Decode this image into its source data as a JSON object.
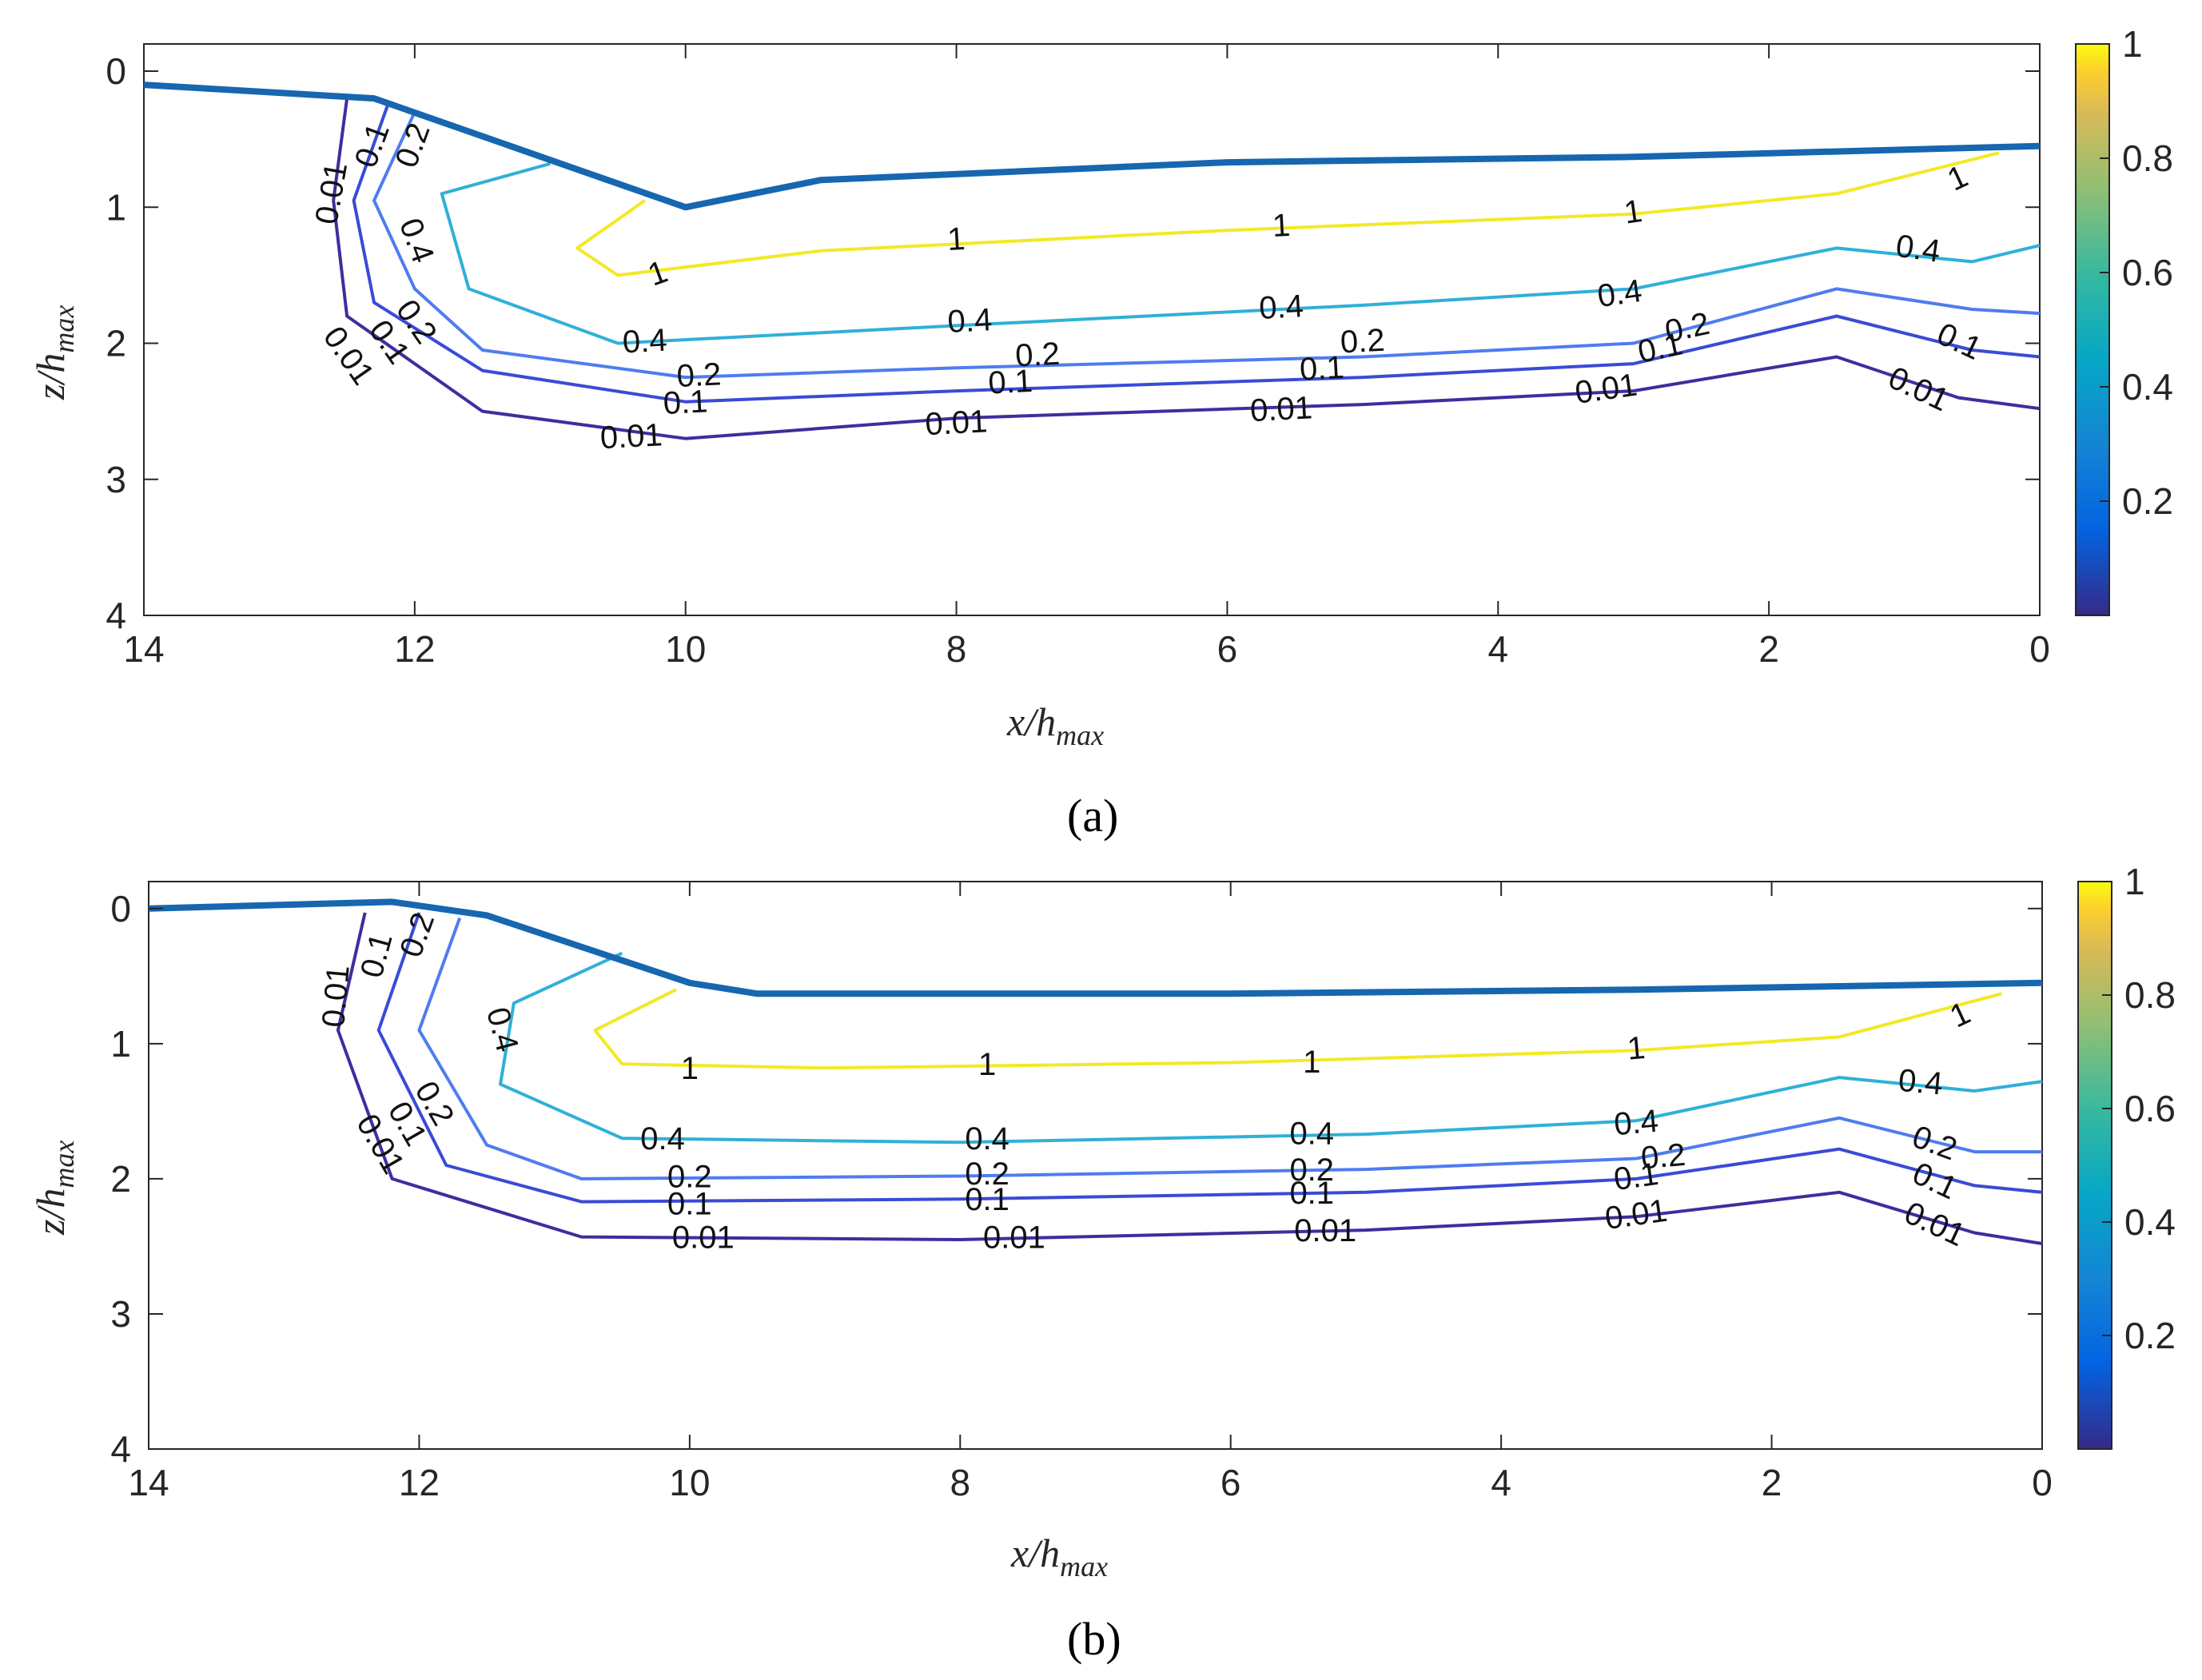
{
  "chart_data": [
    {
      "panel": "a",
      "panel_label": "(a)",
      "type": "contour",
      "xlabel": "x/h",
      "xlabel_sub": "max",
      "ylabel": "z/h",
      "ylabel_sub": "max",
      "xlim": [
        14,
        0
      ],
      "ylim": [
        4,
        -0.2
      ],
      "xticks": [
        "14",
        "12",
        "10",
        "8",
        "6",
        "4",
        "2",
        "0"
      ],
      "yticks": [
        "0",
        "1",
        "2",
        "3",
        "4"
      ],
      "colorbar": {
        "min": 0.0,
        "max": 1.0,
        "ticks": [
          "0.2",
          "0.4",
          "0.6",
          "0.8",
          "1"
        ]
      },
      "surface": [
        [
          14,
          0.1
        ],
        [
          12.3,
          0.2
        ],
        [
          10.0,
          1.0
        ],
        [
          9.0,
          0.8
        ],
        [
          6.0,
          0.67
        ],
        [
          3.0,
          0.63
        ],
        [
          0,
          0.55
        ]
      ],
      "contours": [
        {
          "level": 1,
          "color": "#f2e925",
          "points": [
            [
              10.3,
              0.95
            ],
            [
              10.8,
              1.3
            ],
            [
              10.5,
              1.5
            ],
            [
              9.0,
              1.32
            ],
            [
              6.0,
              1.17
            ],
            [
              3.0,
              1.05
            ],
            [
              1.5,
              0.9
            ],
            [
              0.3,
              0.6
            ]
          ]
        },
        {
          "level": 0.4,
          "color": "#30b0d8",
          "points": [
            [
              11.0,
              0.68
            ],
            [
              11.8,
              0.9
            ],
            [
              11.6,
              1.6
            ],
            [
              10.5,
              2.0
            ],
            [
              8.0,
              1.87
            ],
            [
              5.0,
              1.72
            ],
            [
              3.0,
              1.6
            ],
            [
              1.5,
              1.3
            ],
            [
              0.5,
              1.4
            ],
            [
              0,
              1.28
            ]
          ]
        },
        {
          "level": 0.2,
          "color": "#4f7cf0",
          "points": [
            [
              12.0,
              0.3
            ],
            [
              12.3,
              0.95
            ],
            [
              12.0,
              1.6
            ],
            [
              11.5,
              2.05
            ],
            [
              10.0,
              2.25
            ],
            [
              8.0,
              2.18
            ],
            [
              5.0,
              2.1
            ],
            [
              3.0,
              2.0
            ],
            [
              1.5,
              1.6
            ],
            [
              0.5,
              1.75
            ],
            [
              0,
              1.78
            ]
          ]
        },
        {
          "level": 0.1,
          "color": "#3a4bd6",
          "points": [
            [
              12.2,
              0.25
            ],
            [
              12.45,
              0.95
            ],
            [
              12.3,
              1.7
            ],
            [
              11.5,
              2.2
            ],
            [
              10.0,
              2.43
            ],
            [
              8.0,
              2.35
            ],
            [
              5.0,
              2.25
            ],
            [
              3.0,
              2.15
            ],
            [
              1.5,
              1.8
            ],
            [
              0.5,
              2.05
            ],
            [
              0,
              2.1
            ]
          ]
        },
        {
          "level": 0.01,
          "color": "#3b2f9f",
          "points": [
            [
              12.5,
              0.2
            ],
            [
              12.6,
              0.95
            ],
            [
              12.5,
              1.8
            ],
            [
              11.5,
              2.5
            ],
            [
              10.0,
              2.7
            ],
            [
              8.0,
              2.55
            ],
            [
              5.0,
              2.45
            ],
            [
              3.0,
              2.35
            ],
            [
              1.5,
              2.1
            ],
            [
              0.6,
              2.4
            ],
            [
              0,
              2.48
            ]
          ]
        }
      ],
      "contour_labels": [
        {
          "text": "1",
          "x": 10.2,
          "z": 1.5,
          "angle": -20
        },
        {
          "text": "1",
          "x": 8.0,
          "z": 1.25,
          "angle": -3
        },
        {
          "text": "1",
          "x": 5.6,
          "z": 1.15,
          "angle": -3
        },
        {
          "text": "1",
          "x": 3.0,
          "z": 1.05,
          "angle": -8
        },
        {
          "text": "1",
          "x": 0.6,
          "z": 0.8,
          "angle": -25
        },
        {
          "text": "0.4",
          "x": 12.0,
          "z": 1.25,
          "angle": 70
        },
        {
          "text": "0.4",
          "x": 10.3,
          "z": 2.0,
          "angle": -3
        },
        {
          "text": "0.4",
          "x": 7.9,
          "z": 1.85,
          "angle": -3
        },
        {
          "text": "0.4",
          "x": 5.6,
          "z": 1.75,
          "angle": -3
        },
        {
          "text": "0.4",
          "x": 3.1,
          "z": 1.65,
          "angle": -8
        },
        {
          "text": "0.4",
          "x": 0.9,
          "z": 1.32,
          "angle": 8
        },
        {
          "text": "0.2",
          "x": 12.0,
          "z": 0.55,
          "angle": -70
        },
        {
          "text": "0.2",
          "x": 12.0,
          "z": 1.85,
          "angle": 55
        },
        {
          "text": "0.2",
          "x": 9.9,
          "z": 2.25,
          "angle": -3
        },
        {
          "text": "0.2",
          "x": 7.4,
          "z": 2.1,
          "angle": -3
        },
        {
          "text": "0.2",
          "x": 5.0,
          "z": 2.0,
          "angle": -3
        },
        {
          "text": "0.2",
          "x": 2.6,
          "z": 1.9,
          "angle": -12
        },
        {
          "text": "0.1",
          "x": 12.3,
          "z": 0.55,
          "angle": -70
        },
        {
          "text": "0.1",
          "x": 12.2,
          "z": 2.0,
          "angle": 55
        },
        {
          "text": "0.1",
          "x": 10.0,
          "z": 2.45,
          "angle": -3
        },
        {
          "text": "0.1",
          "x": 7.6,
          "z": 2.3,
          "angle": -3
        },
        {
          "text": "0.1",
          "x": 5.3,
          "z": 2.2,
          "angle": -3
        },
        {
          "text": "0.1",
          "x": 2.8,
          "z": 2.05,
          "angle": -12
        },
        {
          "text": "0.1",
          "x": 0.6,
          "z": 2.0,
          "angle": 25
        },
        {
          "text": "0.01",
          "x": 12.6,
          "z": 0.9,
          "angle": -80
        },
        {
          "text": "0.01",
          "x": 12.5,
          "z": 2.1,
          "angle": 55
        },
        {
          "text": "0.01",
          "x": 10.4,
          "z": 2.7,
          "angle": -3
        },
        {
          "text": "0.01",
          "x": 8.0,
          "z": 2.6,
          "angle": -3
        },
        {
          "text": "0.01",
          "x": 5.6,
          "z": 2.5,
          "angle": -3
        },
        {
          "text": "0.01",
          "x": 3.2,
          "z": 2.35,
          "angle": -8
        },
        {
          "text": "0.01",
          "x": 0.9,
          "z": 2.35,
          "angle": 25
        }
      ]
    },
    {
      "panel": "b",
      "panel_label": "(b)",
      "type": "contour",
      "xlabel": "x/h",
      "xlabel_sub": "max",
      "ylabel": "z/h",
      "ylabel_sub": "max",
      "xlim": [
        14,
        0
      ],
      "ylim": [
        4,
        -0.2
      ],
      "xticks": [
        "14",
        "12",
        "10",
        "8",
        "6",
        "4",
        "2",
        "0"
      ],
      "yticks": [
        "0",
        "1",
        "2",
        "3",
        "4"
      ],
      "colorbar": {
        "min": 0.0,
        "max": 1.0,
        "ticks": [
          "0.2",
          "0.4",
          "0.6",
          "0.8",
          "1"
        ]
      },
      "surface": [
        [
          14,
          0.0
        ],
        [
          12.2,
          -0.05
        ],
        [
          11.5,
          0.05
        ],
        [
          10.0,
          0.55
        ],
        [
          9.5,
          0.63
        ],
        [
          6.0,
          0.63
        ],
        [
          3.0,
          0.6
        ],
        [
          0,
          0.55
        ]
      ],
      "contours": [
        {
          "level": 1,
          "color": "#f2e925",
          "points": [
            [
              10.1,
              0.6
            ],
            [
              10.7,
              0.9
            ],
            [
              10.5,
              1.15
            ],
            [
              9.0,
              1.18
            ],
            [
              6.0,
              1.14
            ],
            [
              3.0,
              1.05
            ],
            [
              1.5,
              0.95
            ],
            [
              0.3,
              0.63
            ]
          ]
        },
        {
          "level": 0.4,
          "color": "#30b0d8",
          "points": [
            [
              10.5,
              0.33
            ],
            [
              11.3,
              0.7
            ],
            [
              11.4,
              1.3
            ],
            [
              10.5,
              1.7
            ],
            [
              8.0,
              1.73
            ],
            [
              5.0,
              1.67
            ],
            [
              3.0,
              1.57
            ],
            [
              1.5,
              1.25
            ],
            [
              0.5,
              1.35
            ],
            [
              0,
              1.28
            ]
          ]
        },
        {
          "level": 0.2,
          "color": "#4f7cf0",
          "points": [
            [
              11.7,
              0.07
            ],
            [
              12.0,
              0.9
            ],
            [
              11.5,
              1.75
            ],
            [
              10.8,
              2.0
            ],
            [
              8.0,
              1.98
            ],
            [
              5.0,
              1.93
            ],
            [
              3.0,
              1.85
            ],
            [
              1.5,
              1.55
            ],
            [
              0.5,
              1.8
            ],
            [
              0,
              1.8
            ]
          ]
        },
        {
          "level": 0.1,
          "color": "#3a4bd6",
          "points": [
            [
              12.0,
              0.03
            ],
            [
              12.3,
              0.9
            ],
            [
              11.8,
              1.9
            ],
            [
              10.8,
              2.17
            ],
            [
              8.0,
              2.15
            ],
            [
              5.0,
              2.1
            ],
            [
              3.0,
              2.0
            ],
            [
              1.5,
              1.78
            ],
            [
              0.5,
              2.05
            ],
            [
              0,
              2.1
            ]
          ]
        },
        {
          "level": 0.01,
          "color": "#3b2f9f",
          "points": [
            [
              12.4,
              0.03
            ],
            [
              12.6,
              0.9
            ],
            [
              12.2,
              2.0
            ],
            [
              10.8,
              2.43
            ],
            [
              8.0,
              2.45
            ],
            [
              5.0,
              2.38
            ],
            [
              3.0,
              2.28
            ],
            [
              1.5,
              2.1
            ],
            [
              0.5,
              2.4
            ],
            [
              0,
              2.48
            ]
          ]
        }
      ],
      "contour_labels": [
        {
          "text": "1",
          "x": 10.0,
          "z": 1.2,
          "angle": 0
        },
        {
          "text": "1",
          "x": 7.8,
          "z": 1.17,
          "angle": 0
        },
        {
          "text": "1",
          "x": 5.4,
          "z": 1.15,
          "angle": 0
        },
        {
          "text": "1",
          "x": 3.0,
          "z": 1.05,
          "angle": -5
        },
        {
          "text": "1",
          "x": 0.6,
          "z": 0.8,
          "angle": -25
        },
        {
          "text": "0.4",
          "x": 11.4,
          "z": 0.9,
          "angle": 75
        },
        {
          "text": "0.4",
          "x": 10.2,
          "z": 1.72,
          "angle": 0
        },
        {
          "text": "0.4",
          "x": 7.8,
          "z": 1.72,
          "angle": 0
        },
        {
          "text": "0.4",
          "x": 5.4,
          "z": 1.68,
          "angle": 0
        },
        {
          "text": "0.4",
          "x": 3.0,
          "z": 1.6,
          "angle": -5
        },
        {
          "text": "0.4",
          "x": 0.9,
          "z": 1.3,
          "angle": 5
        },
        {
          "text": "0.2",
          "x": 12.0,
          "z": 0.2,
          "angle": -70
        },
        {
          "text": "0.2",
          "x": 11.9,
          "z": 1.45,
          "angle": 60
        },
        {
          "text": "0.2",
          "x": 10.0,
          "z": 2.0,
          "angle": 0
        },
        {
          "text": "0.2",
          "x": 7.8,
          "z": 1.98,
          "angle": 0
        },
        {
          "text": "0.2",
          "x": 5.4,
          "z": 1.95,
          "angle": 0
        },
        {
          "text": "0.2",
          "x": 2.8,
          "z": 1.85,
          "angle": -5
        },
        {
          "text": "0.2",
          "x": 0.8,
          "z": 1.75,
          "angle": 20
        },
        {
          "text": "0.1",
          "x": 12.3,
          "z": 0.35,
          "angle": -75
        },
        {
          "text": "0.1",
          "x": 12.1,
          "z": 1.6,
          "angle": 60
        },
        {
          "text": "0.1",
          "x": 10.0,
          "z": 2.2,
          "angle": 0
        },
        {
          "text": "0.1",
          "x": 7.8,
          "z": 2.17,
          "angle": 0
        },
        {
          "text": "0.1",
          "x": 5.4,
          "z": 2.12,
          "angle": 0
        },
        {
          "text": "0.1",
          "x": 3.0,
          "z": 2.0,
          "angle": -8
        },
        {
          "text": "0.1",
          "x": 0.8,
          "z": 2.03,
          "angle": 25
        },
        {
          "text": "0.01",
          "x": 12.6,
          "z": 0.65,
          "angle": -85
        },
        {
          "text": "0.01",
          "x": 12.3,
          "z": 1.75,
          "angle": 60
        },
        {
          "text": "0.01",
          "x": 9.9,
          "z": 2.45,
          "angle": 0
        },
        {
          "text": "0.01",
          "x": 7.6,
          "z": 2.45,
          "angle": 0
        },
        {
          "text": "0.01",
          "x": 5.3,
          "z": 2.4,
          "angle": 0
        },
        {
          "text": "0.01",
          "x": 3.0,
          "z": 2.28,
          "angle": -8
        },
        {
          "text": "0.01",
          "x": 0.8,
          "z": 2.35,
          "angle": 25
        }
      ]
    }
  ]
}
